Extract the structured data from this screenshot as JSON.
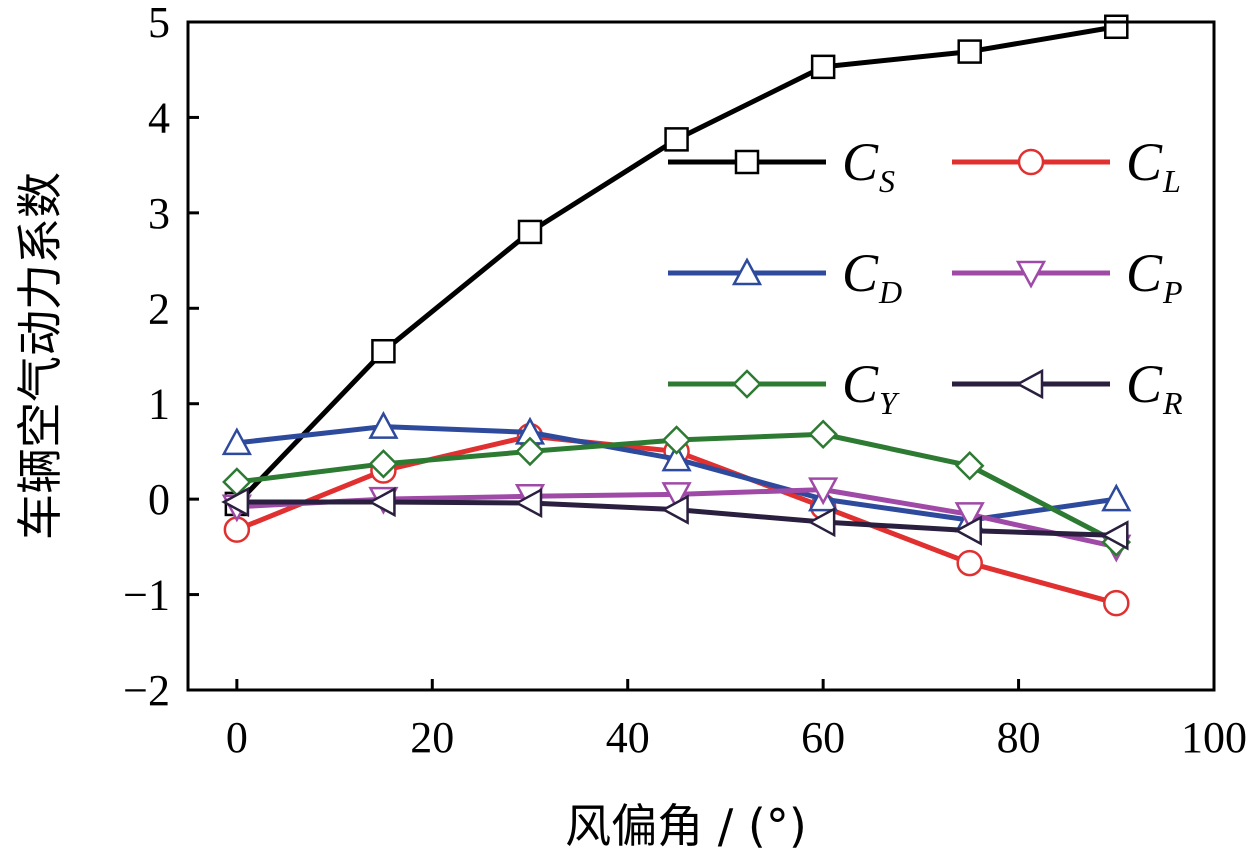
{
  "chart_data": {
    "type": "line",
    "title": "",
    "xlabel": "风偏角 / (°)",
    "ylabel": "车辆空气动力系数",
    "xlim": [
      -5,
      100
    ],
    "ylim": [
      -2,
      5
    ],
    "xticks": [
      0,
      20,
      40,
      60,
      80,
      100
    ],
    "yticks": [
      -2,
      -1,
      0,
      1,
      2,
      3,
      4,
      5
    ],
    "xtick_labels": [
      "0",
      "20",
      "40",
      "60",
      "80",
      "100"
    ],
    "ytick_labels": [
      "−2",
      "−1",
      "0",
      "1",
      "2",
      "3",
      "4",
      "5"
    ],
    "grid": false,
    "legend_position": "upper-right",
    "x": [
      0,
      15,
      30,
      45,
      60,
      75,
      90
    ],
    "series": [
      {
        "name": "C",
        "subscript": "S",
        "color": "#000000",
        "marker": "square",
        "values": [
          -0.05,
          1.55,
          2.8,
          3.77,
          4.53,
          4.69,
          4.95
        ]
      },
      {
        "name": "C",
        "subscript": "L",
        "color": "#e03030",
        "marker": "circle",
        "values": [
          -0.32,
          0.3,
          0.66,
          0.5,
          -0.08,
          -0.67,
          -1.09
        ]
      },
      {
        "name": "C",
        "subscript": "D",
        "color": "#2d4a9c",
        "marker": "triangle-up",
        "values": [
          0.59,
          0.76,
          0.7,
          0.42,
          0.0,
          -0.22,
          0.0
        ]
      },
      {
        "name": "C",
        "subscript": "P",
        "color": "#a04aa8",
        "marker": "triangle-down",
        "values": [
          -0.08,
          0.0,
          0.03,
          0.05,
          0.1,
          -0.16,
          -0.5
        ]
      },
      {
        "name": "C",
        "subscript": "Y",
        "color": "#2d7a32",
        "marker": "diamond",
        "values": [
          0.18,
          0.37,
          0.5,
          0.62,
          0.68,
          0.35,
          -0.45
        ]
      },
      {
        "name": "C",
        "subscript": "R",
        "color": "#2a1f3e",
        "marker": "triangle-left",
        "values": [
          -0.03,
          -0.03,
          -0.04,
          -0.11,
          -0.24,
          -0.33,
          -0.38
        ]
      }
    ]
  }
}
